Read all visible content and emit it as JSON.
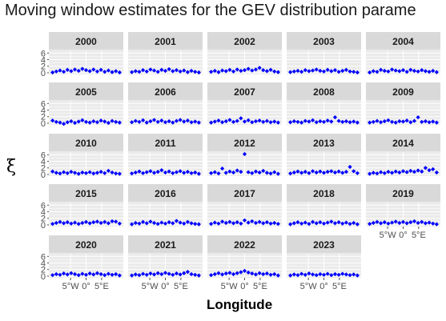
{
  "chart_data": {
    "type": "scatter",
    "title": "Moving window estimates for the GEV distribution parame",
    "xlabel": "Longitude",
    "ylabel": "ξ",
    "panels": [
      "2000",
      "2001",
      "2002",
      "2003",
      "2004",
      "2005",
      "2006",
      "2007",
      "2008",
      "2009",
      "2010",
      "2011",
      "2012",
      "2013",
      "2014",
      "2015",
      "2016",
      "2017",
      "2018",
      "2019",
      "2020",
      "2021",
      "2022",
      "2023"
    ],
    "ylim": [
      -0.5,
      6.8
    ],
    "y_ticks": [
      "0",
      "2",
      "4",
      "6"
    ],
    "y_tick_values": [
      0,
      2,
      4,
      6
    ],
    "xlim": [
      -12,
      12
    ],
    "x_ticks": [
      "5°W",
      "0°",
      "5°E"
    ],
    "x_tick_values": [
      -5,
      0,
      5
    ],
    "series": [
      {
        "panel": "2000",
        "x": [
          -10.8,
          -9.6,
          -8.4,
          -7.2,
          -6.0,
          -4.8,
          -3.6,
          -2.4,
          -1.2,
          0,
          1.2,
          2.4,
          3.6,
          4.8,
          6.0,
          7.2,
          8.4,
          9.6,
          10.8
        ],
        "y": [
          0.1,
          0.4,
          0.7,
          0.3,
          0.9,
          0.5,
          1.0,
          0.6,
          1.2,
          0.8,
          0.5,
          1.0,
          0.4,
          0.9,
          0.3,
          0.7,
          0.2,
          0.5,
          0.1
        ]
      },
      {
        "panel": "2001",
        "x": [
          -10.8,
          -9.6,
          -8.4,
          -7.2,
          -6.0,
          -4.8,
          -3.6,
          -2.4,
          -1.2,
          0,
          1.2,
          2.4,
          3.6,
          4.8,
          6.0,
          7.2,
          8.4,
          9.6,
          10.8
        ],
        "y": [
          0.2,
          0.5,
          0.3,
          0.8,
          0.4,
          1.0,
          0.7,
          0.3,
          0.9,
          0.6,
          1.1,
          0.5,
          0.8,
          0.4,
          0.7,
          0.2,
          0.6,
          0.3,
          0.1
        ]
      },
      {
        "panel": "2002",
        "x": [
          -10.8,
          -9.6,
          -8.4,
          -7.2,
          -6.0,
          -4.8,
          -3.6,
          -2.4,
          -1.2,
          0,
          1.2,
          2.4,
          3.6,
          4.8,
          6.0,
          7.2,
          8.4,
          9.6,
          10.8
        ],
        "y": [
          0.3,
          0.6,
          0.2,
          0.7,
          0.5,
          0.9,
          0.4,
          1.0,
          0.6,
          0.8,
          1.2,
          0.7,
          1.0,
          1.5,
          0.8,
          0.5,
          0.9,
          0.4,
          0.2
        ]
      },
      {
        "panel": "2003",
        "x": [
          -10.8,
          -9.6,
          -8.4,
          -7.2,
          -6.0,
          -4.8,
          -3.6,
          -2.4,
          -1.2,
          0,
          1.2,
          2.4,
          3.6,
          4.8,
          6.0,
          7.2,
          8.4,
          9.6,
          10.8
        ],
        "y": [
          0.2,
          0.4,
          0.6,
          0.3,
          0.8,
          0.5,
          0.7,
          1.0,
          0.6,
          0.4,
          0.9,
          0.5,
          0.8,
          0.3,
          0.6,
          0.9,
          0.4,
          0.3,
          0.1
        ]
      },
      {
        "panel": "2004",
        "x": [
          -10.8,
          -9.6,
          -8.4,
          -7.2,
          -6.0,
          -4.8,
          -3.6,
          -2.4,
          -1.2,
          0,
          1.2,
          2.4,
          3.6,
          4.8,
          6.0,
          7.2,
          8.4,
          9.6,
          10.8
        ],
        "y": [
          0.1,
          0.5,
          0.3,
          0.9,
          0.6,
          0.4,
          1.0,
          0.7,
          0.5,
          0.8,
          0.3,
          0.9,
          0.6,
          0.4,
          0.8,
          0.5,
          0.3,
          0.6,
          0.2
        ]
      },
      {
        "panel": "2005",
        "x": [
          -10.8,
          -9.6,
          -8.4,
          -7.2,
          -6.0,
          -4.8,
          -3.6,
          -2.4,
          -1.2,
          0,
          1.2,
          2.4,
          3.6,
          4.8,
          6.0,
          7.2,
          8.4,
          9.6,
          10.8
        ],
        "y": [
          0.8,
          0.4,
          0.2,
          -0.2,
          0.3,
          0.6,
          0.1,
          0.5,
          0.9,
          0.4,
          0.2,
          0.6,
          0.3,
          0.8,
          0.5,
          0.1,
          0.7,
          0.4,
          0.2
        ]
      },
      {
        "panel": "2006",
        "x": [
          -10.8,
          -9.6,
          -8.4,
          -7.2,
          -6.0,
          -4.8,
          -3.6,
          -2.4,
          -1.2,
          0,
          1.2,
          2.4,
          3.6,
          4.8,
          6.0,
          7.2,
          8.4,
          9.6,
          10.8
        ],
        "y": [
          0.3,
          0.7,
          0.4,
          0.9,
          0.2,
          0.6,
          1.0,
          0.4,
          0.8,
          0.3,
          0.6,
          0.2,
          0.7,
          1.0,
          0.5,
          0.8,
          0.3,
          0.5,
          0.2
        ]
      },
      {
        "panel": "2007",
        "x": [
          -10.8,
          -9.6,
          -8.4,
          -7.2,
          -6.0,
          -4.8,
          -3.6,
          -2.4,
          -1.2,
          0,
          1.2,
          2.4,
          3.6,
          4.8,
          6.0,
          7.2,
          8.4,
          9.6,
          10.8
        ],
        "y": [
          0.2,
          0.5,
          0.8,
          0.3,
          0.6,
          1.0,
          0.4,
          0.7,
          1.5,
          0.5,
          0.9,
          0.3,
          0.6,
          0.8,
          0.4,
          0.7,
          0.3,
          0.5,
          0.2
        ]
      },
      {
        "panel": "2008",
        "x": [
          -10.8,
          -9.6,
          -8.4,
          -7.2,
          -6.0,
          -4.8,
          -3.6,
          -2.4,
          -1.2,
          0,
          1.2,
          2.4,
          3.6,
          4.8,
          6.0,
          7.2,
          8.4,
          9.6,
          10.8
        ],
        "y": [
          0.3,
          0.6,
          0.4,
          0.2,
          0.7,
          0.5,
          0.9,
          0.3,
          0.6,
          0.4,
          0.8,
          0.5,
          1.8,
          0.7,
          0.4,
          0.6,
          0.3,
          0.5,
          0.2
        ]
      },
      {
        "panel": "2009",
        "x": [
          -10.8,
          -9.6,
          -8.4,
          -7.2,
          -6.0,
          -4.8,
          -3.6,
          -2.4,
          -1.2,
          0,
          1.2,
          2.4,
          3.6,
          4.8,
          6.0,
          7.2,
          8.4,
          9.6,
          10.8
        ],
        "y": [
          0.2,
          0.4,
          0.7,
          0.3,
          0.6,
          0.9,
          0.4,
          0.2,
          0.6,
          0.5,
          0.8,
          0.3,
          0.7,
          1.8,
          0.4,
          0.6,
          0.3,
          0.5,
          0.2
        ]
      },
      {
        "panel": "2010",
        "x": [
          -10.8,
          -9.6,
          -8.4,
          -7.2,
          -6.0,
          -4.8,
          -3.6,
          -2.4,
          -1.2,
          0,
          1.2,
          2.4,
          3.6,
          4.8,
          6.0,
          7.2,
          8.4,
          9.6,
          10.8
        ],
        "y": [
          0.9,
          0.5,
          0.3,
          0.7,
          0.4,
          0.8,
          0.5,
          0.2,
          0.6,
          0.4,
          0.7,
          0.3,
          0.5,
          0.8,
          0.4,
          1.1,
          0.6,
          0.3,
          0.2
        ]
      },
      {
        "panel": "2011",
        "x": [
          -10.8,
          -9.6,
          -8.4,
          -7.2,
          -6.0,
          -4.8,
          -3.6,
          -2.4,
          -1.2,
          0,
          1.2,
          2.4,
          3.6,
          4.8,
          6.0,
          7.2,
          8.4,
          9.6,
          10.8
        ],
        "y": [
          0.3,
          0.6,
          0.9,
          0.4,
          0.7,
          1.0,
          0.5,
          0.8,
          1.3,
          0.6,
          0.9,
          0.4,
          0.7,
          1.0,
          0.5,
          0.8,
          0.4,
          0.6,
          0.2
        ]
      },
      {
        "panel": "2012",
        "x": [
          -10.8,
          -9.6,
          -8.4,
          -7.2,
          -6.0,
          -4.8,
          -3.6,
          -2.4,
          -1.2,
          0,
          1.2,
          2.4,
          3.6,
          4.8,
          6.0,
          7.2,
          8.4,
          9.6,
          10.8
        ],
        "y": [
          0.4,
          0.7,
          0.3,
          1.8,
          0.5,
          0.9,
          0.6,
          1.2,
          0.8,
          6.2,
          0.7,
          0.4,
          0.9,
          0.6,
          1.1,
          0.5,
          0.3,
          0.7,
          0.2
        ]
      },
      {
        "panel": "2013",
        "x": [
          -10.8,
          -9.6,
          -8.4,
          -7.2,
          -6.0,
          -4.8,
          -3.6,
          -2.4,
          -1.2,
          0,
          1.2,
          2.4,
          3.6,
          4.8,
          6.0,
          7.2,
          8.4,
          9.6,
          10.8
        ],
        "y": [
          0.3,
          0.6,
          0.9,
          0.5,
          0.8,
          0.4,
          1.0,
          0.6,
          0.9,
          0.5,
          0.8,
          1.0,
          0.6,
          0.9,
          0.5,
          0.8,
          2.3,
          1.0,
          0.4
        ]
      },
      {
        "panel": "2014",
        "x": [
          -10.8,
          -9.6,
          -8.4,
          -7.2,
          -6.0,
          -4.8,
          -3.6,
          -2.4,
          -1.2,
          0,
          1.2,
          2.4,
          3.6,
          4.8,
          6.0,
          7.2,
          8.4,
          9.6,
          10.8
        ],
        "y": [
          0.2,
          0.5,
          0.3,
          0.7,
          0.4,
          0.8,
          0.5,
          0.9,
          0.6,
          1.0,
          0.7,
          1.1,
          0.8,
          1.2,
          0.9,
          2.0,
          1.3,
          1.6,
          0.6
        ]
      },
      {
        "panel": "2015",
        "x": [
          -10.8,
          -9.6,
          -8.4,
          -7.2,
          -6.0,
          -4.8,
          -3.6,
          -2.4,
          -1.2,
          0,
          1.2,
          2.4,
          3.6,
          4.8,
          6.0,
          7.2,
          8.4,
          9.6,
          10.8
        ],
        "y": [
          0.3,
          0.6,
          0.9,
          0.5,
          0.8,
          0.4,
          0.7,
          0.3,
          0.6,
          0.9,
          0.5,
          0.8,
          1.0,
          0.6,
          0.9,
          0.5,
          1.1,
          1.0,
          0.4
        ]
      },
      {
        "panel": "2016",
        "x": [
          -10.8,
          -9.6,
          -8.4,
          -7.2,
          -6.0,
          -4.8,
          -3.6,
          -2.4,
          -1.2,
          0,
          1.2,
          2.4,
          3.6,
          4.8,
          6.0,
          7.2,
          8.4,
          9.6,
          10.8
        ],
        "y": [
          0.2,
          0.6,
          0.4,
          0.9,
          0.5,
          1.0,
          0.6,
          0.3,
          0.7,
          0.4,
          0.8,
          0.5,
          1.2,
          0.7,
          0.4,
          0.9,
          0.5,
          0.3,
          0.2
        ]
      },
      {
        "panel": "2017",
        "x": [
          -10.8,
          -9.6,
          -8.4,
          -7.2,
          -6.0,
          -4.8,
          -3.6,
          -2.4,
          -1.2,
          0,
          1.2,
          2.4,
          3.6,
          4.8,
          6.0,
          7.2,
          8.4,
          9.6,
          10.8
        ],
        "y": [
          0.3,
          0.7,
          0.4,
          1.0,
          0.6,
          0.9,
          0.5,
          0.8,
          0.4,
          1.4,
          0.7,
          1.1,
          0.6,
          0.9,
          0.5,
          0.8,
          0.4,
          0.6,
          0.3
        ]
      },
      {
        "panel": "2018",
        "x": [
          -10.8,
          -9.6,
          -8.4,
          -7.2,
          -6.0,
          -4.8,
          -3.6,
          -2.4,
          -1.2,
          0,
          1.2,
          2.4,
          3.6,
          4.8,
          6.0,
          7.2,
          8.4,
          9.6,
          10.8
        ],
        "y": [
          0.2,
          0.5,
          0.8,
          0.4,
          0.7,
          0.3,
          0.9,
          0.5,
          0.8,
          0.4,
          0.7,
          1.0,
          0.5,
          0.8,
          0.4,
          0.7,
          0.3,
          0.6,
          0.2
        ]
      },
      {
        "panel": "2019",
        "x": [
          -10.8,
          -9.6,
          -8.4,
          -7.2,
          -6.0,
          -4.8,
          -3.6,
          -2.4,
          -1.2,
          0,
          1.2,
          2.4,
          3.6,
          4.8,
          6.0,
          7.2,
          8.4,
          9.6,
          10.8
        ],
        "y": [
          0.3,
          0.6,
          0.9,
          0.5,
          0.8,
          0.4,
          0.7,
          1.0,
          0.6,
          0.9,
          0.5,
          0.8,
          1.1,
          0.6,
          0.9,
          0.5,
          0.7,
          0.4,
          0.2
        ]
      },
      {
        "panel": "2020",
        "x": [
          -10.8,
          -9.6,
          -8.4,
          -7.2,
          -6.0,
          -4.8,
          -3.6,
          -2.4,
          -1.2,
          0,
          1.2,
          2.4,
          3.6,
          4.8,
          6.0,
          7.2,
          8.4,
          9.6,
          10.8
        ],
        "y": [
          0.3,
          0.6,
          0.4,
          0.8,
          0.5,
          0.9,
          0.6,
          0.3,
          0.7,
          0.4,
          0.8,
          0.5,
          0.9,
          0.6,
          0.3,
          0.7,
          0.4,
          0.6,
          0.2
        ]
      },
      {
        "panel": "2021",
        "x": [
          -10.8,
          -9.6,
          -8.4,
          -7.2,
          -6.0,
          -4.8,
          -3.6,
          -2.4,
          -1.2,
          0,
          1.2,
          2.4,
          3.6,
          4.8,
          6.0,
          7.2,
          8.4,
          9.6,
          10.8
        ],
        "y": [
          0.2,
          0.5,
          0.3,
          0.7,
          0.4,
          0.8,
          0.5,
          0.9,
          0.6,
          1.0,
          0.7,
          0.4,
          0.8,
          0.5,
          0.9,
          1.3,
          0.6,
          0.4,
          0.2
        ]
      },
      {
        "panel": "2022",
        "x": [
          -10.8,
          -9.6,
          -8.4,
          -7.2,
          -6.0,
          -4.8,
          -3.6,
          -2.4,
          -1.2,
          0,
          1.2,
          2.4,
          3.6,
          4.8,
          6.0,
          7.2,
          8.4,
          9.6,
          10.8
        ],
        "y": [
          0.3,
          0.6,
          0.9,
          0.5,
          0.8,
          1.0,
          0.6,
          0.9,
          1.2,
          1.6,
          1.1,
          0.8,
          0.5,
          0.9,
          0.6,
          0.8,
          0.4,
          0.6,
          0.2
        ]
      },
      {
        "panel": "2023",
        "x": [
          -10.8,
          -9.6,
          -8.4,
          -7.2,
          -6.0,
          -4.8,
          -3.6,
          -2.4,
          -1.2,
          0,
          1.2,
          2.4,
          3.6,
          4.8,
          6.0,
          7.2,
          8.4,
          9.6,
          10.8
        ],
        "y": [
          0.2,
          0.5,
          0.3,
          0.7,
          0.4,
          0.8,
          0.5,
          0.3,
          0.6,
          0.4,
          0.7,
          0.3,
          0.6,
          0.4,
          0.7,
          0.5,
          0.3,
          0.5,
          0.2
        ]
      }
    ],
    "point_color": "#0000ff",
    "strip_color": "#d9d9d9",
    "panel_bg": "#ebebeb",
    "grid_color": "#ffffff",
    "grid": true,
    "legend": "none"
  }
}
